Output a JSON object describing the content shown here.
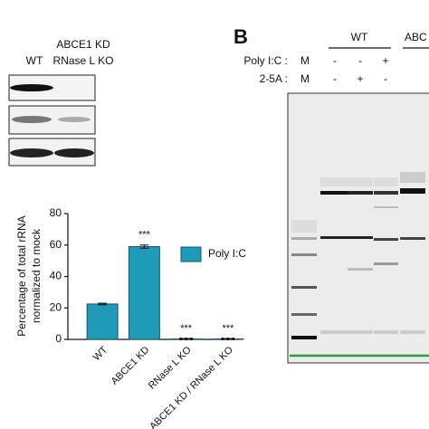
{
  "blot": {
    "labels": [
      "WT",
      "ABCE1 KD",
      "RNase L KO"
    ]
  },
  "chart_data": {
    "type": "bar",
    "y_label": [
      "Percentage of total rRNA",
      "normalized to mock"
    ],
    "categories": [
      "WT",
      "ABCE1 KD",
      "RNase L KO",
      "ABCE1 KD / RNase L KO"
    ],
    "series": [
      {
        "name": "Poly I:C",
        "color": "#1d9bb8",
        "values": [
          22.5,
          59,
          0.3,
          0.3
        ],
        "error": [
          0.5,
          1,
          0.3,
          0.3
        ]
      }
    ],
    "annotations": [
      {
        "text": "***",
        "category": "ABCE1 KD"
      },
      {
        "text": "***",
        "category": "RNase L KO"
      },
      {
        "text": "***",
        "category": "ABCE1 KD / RNase L KO"
      }
    ],
    "ylim": [
      0,
      80
    ],
    "yticks": [
      0,
      20,
      40,
      60,
      80
    ]
  },
  "panel_b": {
    "label": "B",
    "group": "WT",
    "group_2": "ABC",
    "rows": [
      {
        "name": "Poly I:C :",
        "values": [
          "M",
          "-",
          "-",
          "+"
        ]
      },
      {
        "name": "2-5A :",
        "values": [
          "M",
          "-",
          "+",
          "-"
        ]
      }
    ]
  }
}
